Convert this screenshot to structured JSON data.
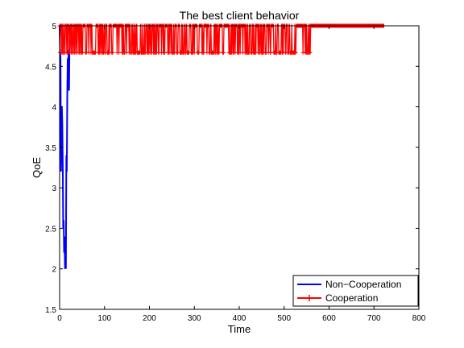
{
  "chart_data": {
    "type": "line",
    "title": "The best client behavior",
    "xlabel": "Time",
    "ylabel": "QoE",
    "xlim": [
      0,
      800
    ],
    "ylim": [
      1.5,
      5
    ],
    "xticks": [
      0,
      100,
      200,
      300,
      400,
      500,
      600,
      700,
      800
    ],
    "yticks": [
      1.5,
      2,
      2.5,
      3,
      3.5,
      4,
      4.5,
      5
    ],
    "xtick_labels": [
      "0",
      "100",
      "200",
      "300",
      "400",
      "500",
      "600",
      "700",
      "800"
    ],
    "ytick_labels": [
      "1.5",
      "2",
      "2.5",
      "3",
      "3.5",
      "4",
      "4.5",
      "5"
    ],
    "grid": false,
    "legend": {
      "placement": "bottom-right",
      "entries": [
        "Non−Cooperation",
        "Cooperation"
      ]
    },
    "series": [
      {
        "name": "Non−Cooperation",
        "color": "#0000ff",
        "marker": "none",
        "x": [
          0,
          1,
          2,
          3,
          4,
          5,
          6,
          7,
          8,
          9,
          10,
          11,
          12,
          13,
          14,
          15,
          16,
          17,
          18,
          19,
          20,
          21,
          22,
          23,
          24,
          25,
          26,
          27,
          28,
          29,
          30,
          31
        ],
        "y": [
          5,
          4.7,
          4.6,
          3.2,
          3.5,
          4.0,
          3.8,
          3.3,
          2.5,
          2.6,
          2.2,
          2.4,
          2.0,
          2.3,
          2.0,
          3.4,
          3.2,
          4.1,
          4.6,
          4.3,
          4.7,
          4.2,
          4.8,
          5,
          5,
          5,
          5,
          5,
          5,
          5,
          5,
          5
        ]
      },
      {
        "name": "Cooperation",
        "color": "#ff0000",
        "marker": "+",
        "x_range": [
          0,
          722
        ],
        "oscillation_end": 558,
        "high": 5,
        "low": 4.67
      }
    ]
  }
}
